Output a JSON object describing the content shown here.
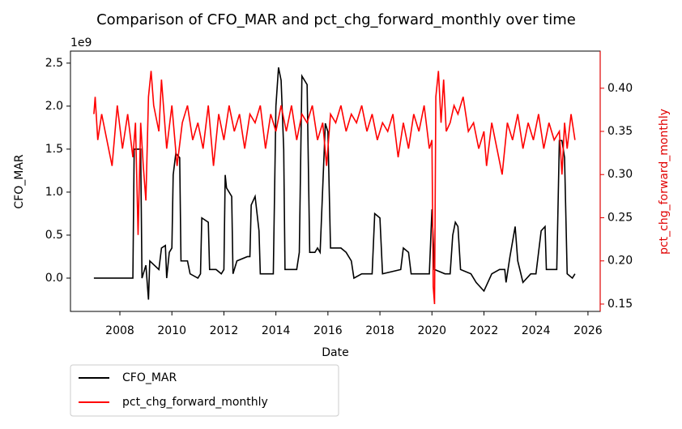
{
  "chart_data": {
    "type": "line",
    "title": "Comparison of CFO_MAR and pct_chg_forward_monthly over time",
    "x_label": "Date",
    "y_label": "CFO_MAR",
    "y2_label": "pct_chg_forward_monthly",
    "y_offset_label": "1e9",
    "xlim": [
      2006.1,
      2026.47
    ],
    "xticks": [
      2008,
      2010,
      2012,
      2014,
      2016,
      2018,
      2020,
      2022,
      2024,
      2026
    ],
    "ylim": [
      -0.387,
      2.64
    ],
    "yticks": [
      {
        "value": 0,
        "label": "0.0"
      },
      0.5,
      {
        "value": 1,
        "label": "1.0"
      },
      1.5,
      {
        "value": 2,
        "label": "2.0"
      },
      2.5
    ],
    "y2lim": [
      0.1415,
      0.443
    ],
    "y2ticks": [
      0.15,
      {
        "value": 0.2,
        "label": "0.20"
      },
      0.25,
      {
        "value": 0.3,
        "label": "0.30"
      },
      0.35,
      {
        "value": 0.4,
        "label": "0.40"
      }
    ],
    "y2_color": "#e00000",
    "legend": "below left",
    "series": [
      {
        "name": "CFO_MAR",
        "color": "#000000",
        "axis": "y",
        "x": [
          2007.0,
          2008.5,
          2008.55,
          2008.8,
          2008.85,
          2009.0,
          2009.1,
          2009.15,
          2009.5,
          2009.6,
          2009.75,
          2009.8,
          2009.9,
          2010.0,
          2010.05,
          2010.15,
          2010.3,
          2010.35,
          2010.6,
          2010.7,
          2011.0,
          2011.1,
          2011.15,
          2011.4,
          2011.45,
          2011.7,
          2011.9,
          2012.0,
          2012.05,
          2012.1,
          2012.3,
          2012.35,
          2012.5,
          2012.9,
          2013.0,
          2013.05,
          2013.2,
          2013.35,
          2013.4,
          2013.9,
          2014.0,
          2014.1,
          2014.2,
          2014.3,
          2014.35,
          2014.8,
          2014.9,
          2015.0,
          2015.2,
          2015.3,
          2015.5,
          2015.6,
          2015.7,
          2015.9,
          2016.0,
          2016.1,
          2016.5,
          2016.7,
          2016.9,
          2017.0,
          2017.3,
          2017.4,
          2017.7,
          2017.8,
          2018.0,
          2018.1,
          2018.8,
          2018.9,
          2019.1,
          2019.2,
          2019.9,
          2020.0,
          2020.1,
          2020.5,
          2020.7,
          2020.8,
          2020.9,
          2021.0,
          2021.1,
          2021.5,
          2021.7,
          2022.0,
          2022.3,
          2022.6,
          2022.8,
          2022.85,
          2023.0,
          2023.2,
          2023.3,
          2023.5,
          2023.8,
          2024.0,
          2024.2,
          2024.35,
          2024.4,
          2024.8,
          2024.9,
          2025.0,
          2025.1,
          2025.2,
          2025.4,
          2025.5
        ],
        "values": [
          0,
          0,
          1.5,
          1.5,
          0,
          0.15,
          -0.25,
          0.2,
          0.1,
          0.35,
          0.38,
          0.0,
          0.3,
          0.35,
          1.2,
          1.45,
          1.4,
          0.2,
          0.2,
          0.05,
          0.0,
          0.05,
          0.7,
          0.65,
          0.1,
          0.1,
          0.05,
          0.1,
          1.2,
          1.05,
          0.95,
          0.05,
          0.2,
          0.25,
          0.25,
          0.85,
          0.95,
          0.55,
          0.05,
          0.05,
          2.0,
          2.45,
          2.3,
          1.5,
          0.1,
          0.1,
          0.3,
          2.35,
          2.25,
          0.3,
          0.3,
          0.35,
          0.3,
          1.8,
          1.7,
          0.35,
          0.35,
          0.3,
          0.2,
          0.0,
          0.05,
          0.05,
          0.05,
          0.75,
          0.7,
          0.05,
          0.1,
          0.35,
          0.3,
          0.05,
          0.05,
          0.8,
          0.1,
          0.05,
          0.05,
          0.5,
          0.65,
          0.6,
          0.1,
          0.05,
          -0.05,
          -0.15,
          0.05,
          0.1,
          0.1,
          -0.05,
          0.25,
          0.6,
          0.2,
          -0.05,
          0.05,
          0.05,
          0.55,
          0.6,
          0.1,
          0.1,
          1.6,
          1.6,
          1.4,
          0.05,
          0.0,
          0.05
        ]
      },
      {
        "name": "pct_chg_forward_monthly",
        "color": "#ff0000",
        "axis": "y2",
        "x": [
          2007.0,
          2007.05,
          2007.15,
          2007.3,
          2007.5,
          2007.7,
          2007.9,
          2008.1,
          2008.3,
          2008.5,
          2008.6,
          2008.7,
          2008.8,
          2008.9,
          2009.0,
          2009.1,
          2009.2,
          2009.3,
          2009.5,
          2009.6,
          2009.8,
          2010.0,
          2010.2,
          2010.4,
          2010.6,
          2010.8,
          2011.0,
          2011.2,
          2011.4,
          2011.6,
          2011.8,
          2012.0,
          2012.2,
          2012.4,
          2012.6,
          2012.8,
          2013.0,
          2013.2,
          2013.4,
          2013.6,
          2013.8,
          2014.0,
          2014.2,
          2014.4,
          2014.6,
          2014.8,
          2015.0,
          2015.2,
          2015.4,
          2015.6,
          2015.8,
          2015.95,
          2016.1,
          2016.3,
          2016.5,
          2016.7,
          2016.9,
          2017.1,
          2017.3,
          2017.5,
          2017.7,
          2017.9,
          2018.1,
          2018.3,
          2018.5,
          2018.7,
          2018.9,
          2019.1,
          2019.3,
          2019.5,
          2019.7,
          2019.9,
          2020.0,
          2020.05,
          2020.1,
          2020.15,
          2020.25,
          2020.35,
          2020.45,
          2020.55,
          2020.7,
          2020.85,
          2021.0,
          2021.2,
          2021.4,
          2021.6,
          2021.8,
          2022.0,
          2022.1,
          2022.3,
          2022.5,
          2022.7,
          2022.9,
          2023.1,
          2023.3,
          2023.5,
          2023.7,
          2023.9,
          2024.1,
          2024.3,
          2024.5,
          2024.7,
          2024.9,
          2025.0,
          2025.1,
          2025.2,
          2025.35,
          2025.5
        ],
        "values": [
          0.37,
          0.39,
          0.34,
          0.37,
          0.34,
          0.31,
          0.38,
          0.33,
          0.37,
          0.32,
          0.36,
          0.23,
          0.36,
          0.31,
          0.27,
          0.39,
          0.42,
          0.38,
          0.35,
          0.41,
          0.33,
          0.38,
          0.31,
          0.36,
          0.38,
          0.34,
          0.36,
          0.33,
          0.38,
          0.31,
          0.37,
          0.34,
          0.38,
          0.35,
          0.37,
          0.33,
          0.37,
          0.36,
          0.38,
          0.33,
          0.37,
          0.35,
          0.38,
          0.35,
          0.38,
          0.34,
          0.37,
          0.36,
          0.38,
          0.34,
          0.36,
          0.31,
          0.37,
          0.36,
          0.38,
          0.35,
          0.37,
          0.36,
          0.38,
          0.35,
          0.37,
          0.34,
          0.36,
          0.35,
          0.37,
          0.32,
          0.36,
          0.33,
          0.37,
          0.35,
          0.38,
          0.33,
          0.34,
          0.17,
          0.15,
          0.39,
          0.42,
          0.36,
          0.41,
          0.35,
          0.36,
          0.38,
          0.37,
          0.39,
          0.35,
          0.36,
          0.33,
          0.35,
          0.31,
          0.36,
          0.33,
          0.3,
          0.36,
          0.34,
          0.37,
          0.33,
          0.36,
          0.34,
          0.37,
          0.33,
          0.36,
          0.34,
          0.35,
          0.3,
          0.36,
          0.33,
          0.37,
          0.34
        ]
      }
    ]
  }
}
